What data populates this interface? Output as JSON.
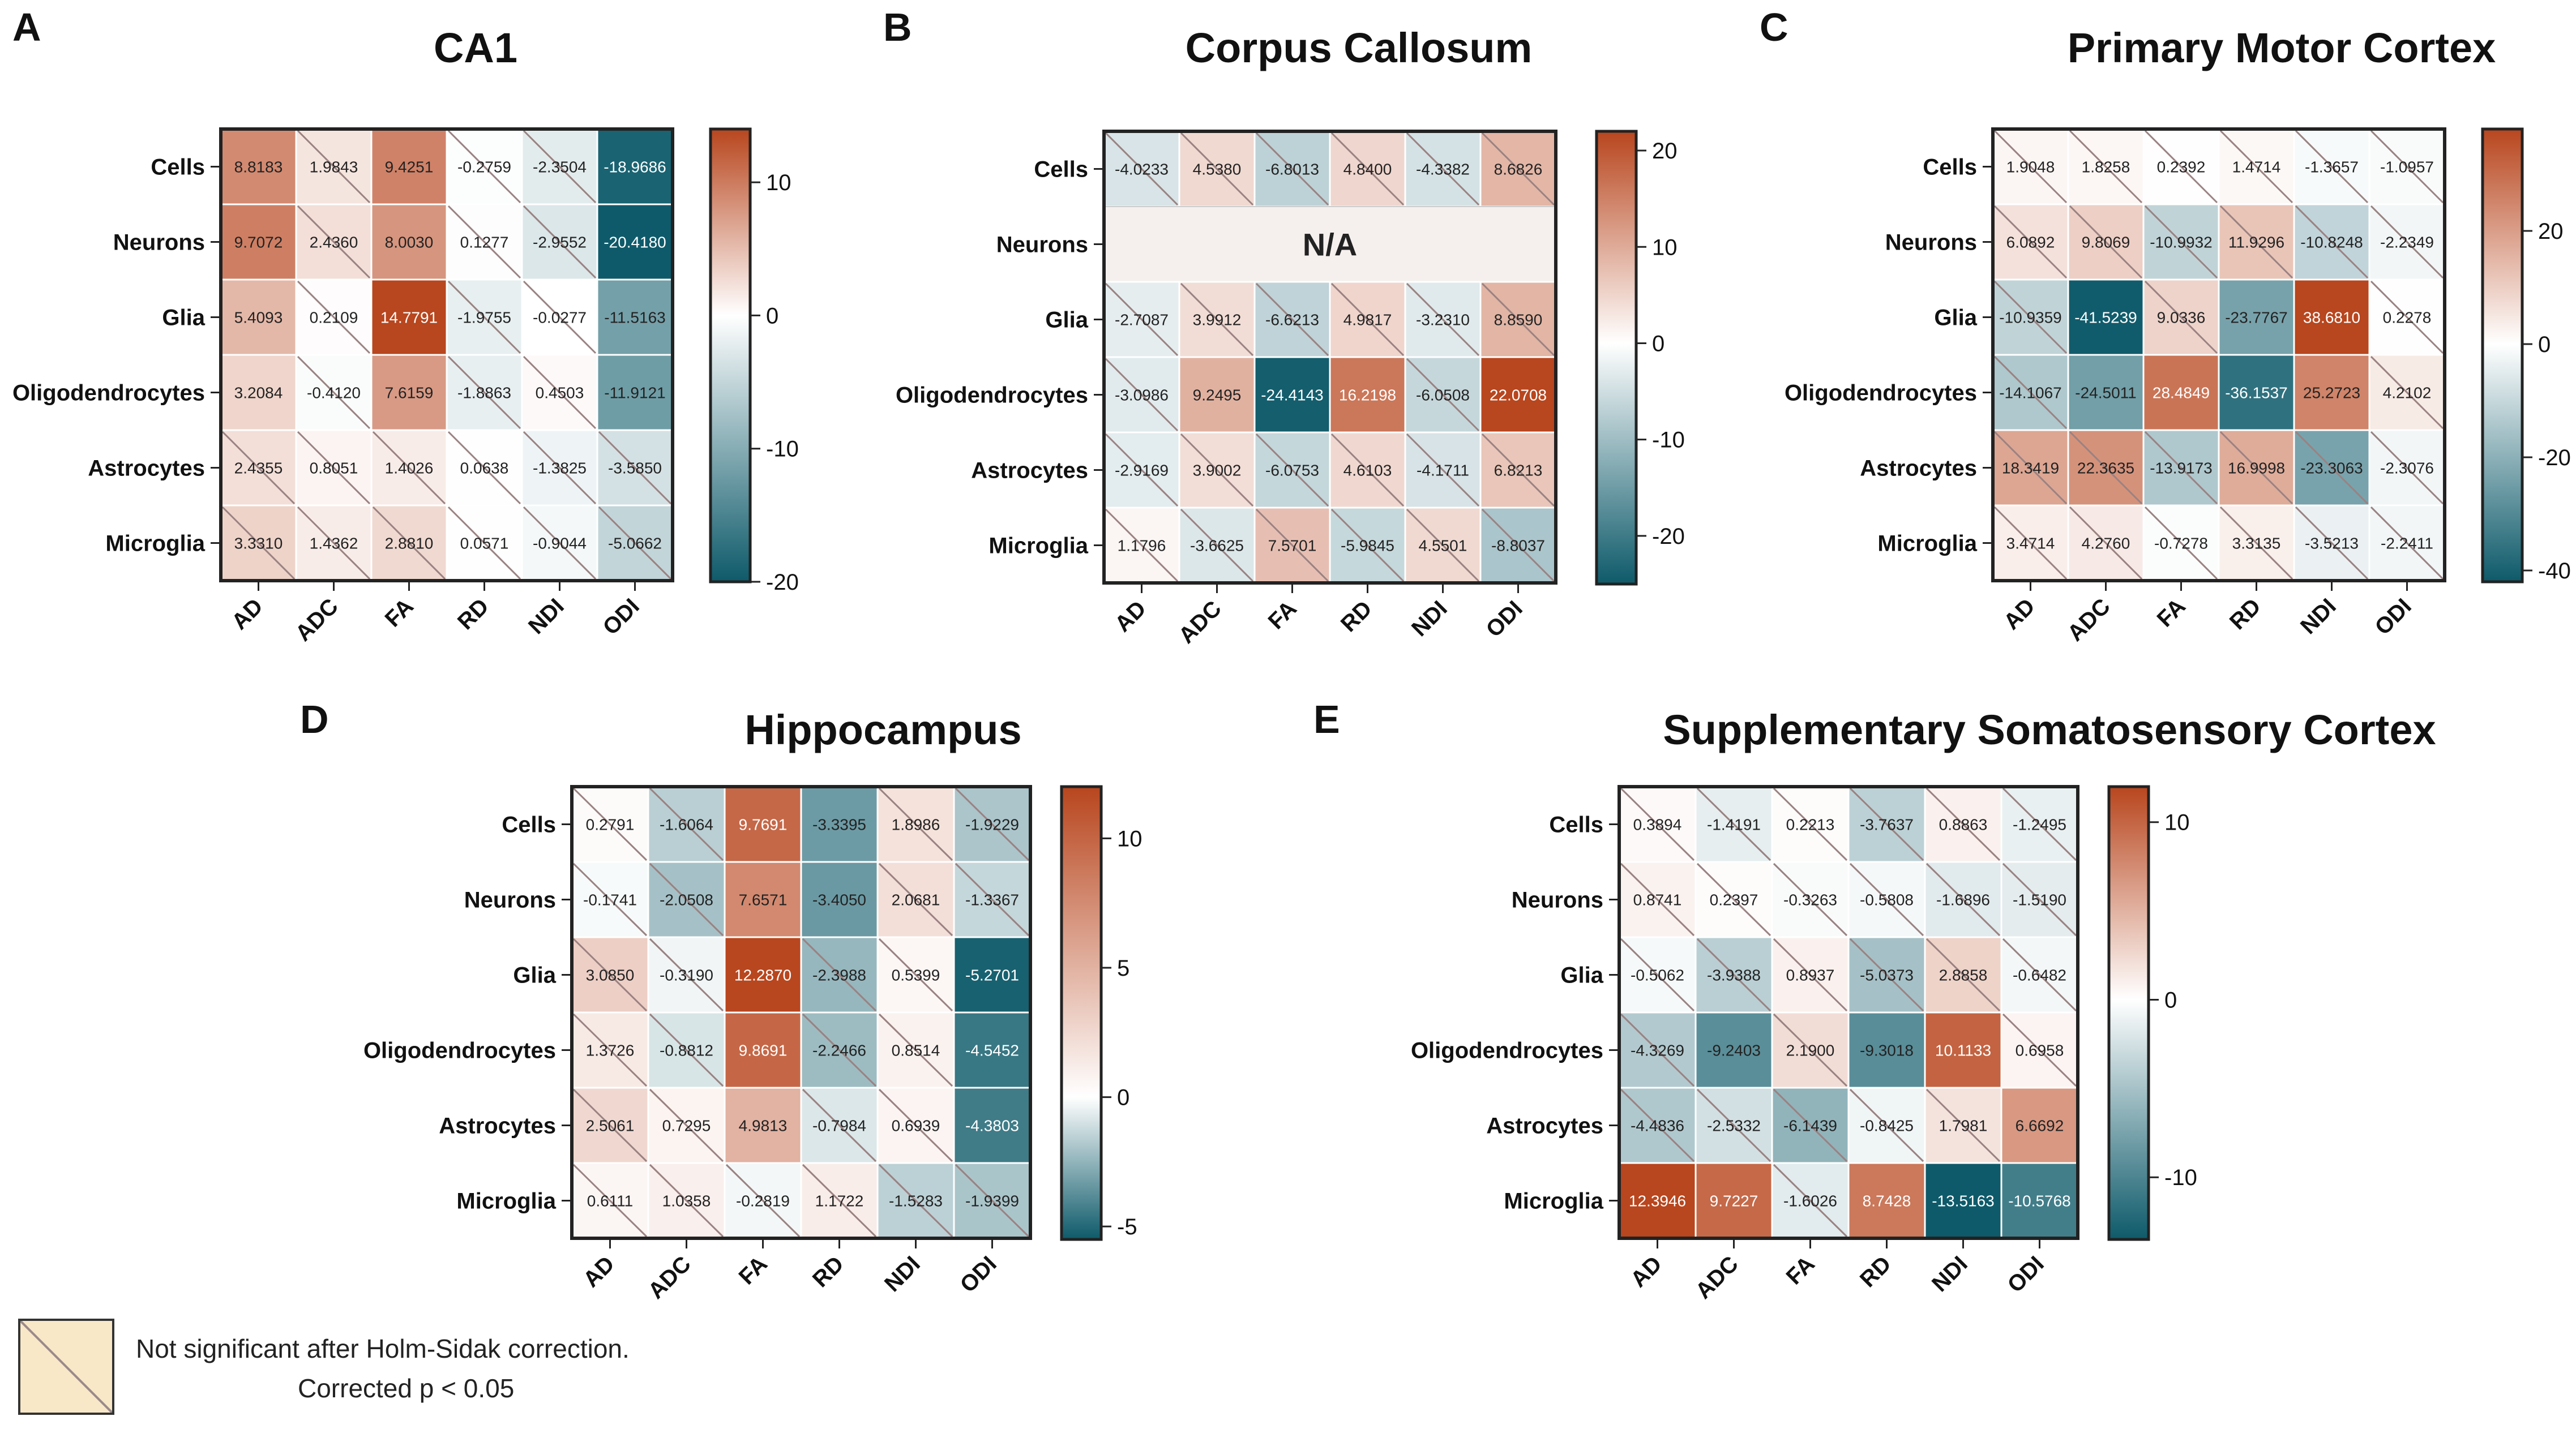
{
  "colors": {
    "positive": "#b8461e",
    "negative": "#0e5a6a",
    "mid": "#ffffff",
    "ns_fill": "#f8e8c8",
    "border": "#222222",
    "na_fill": "#f5f0ee"
  },
  "legend": {
    "line1": "Not significant after Holm-Sidak correction.",
    "line2": "Corrected p < 0.05"
  },
  "chart_data": [
    {
      "type": "heatmap",
      "panel": "A",
      "title": "CA1",
      "rows": [
        "Cells",
        "Neurons",
        "Glia",
        "Oligodendrocytes",
        "Astrocytes",
        "Microglia"
      ],
      "columns": [
        "AD",
        "ADC",
        "FA",
        "RD",
        "NDI",
        "ODI"
      ],
      "values": [
        [
          "8.8183",
          "1.9843",
          "9.4251",
          "-0.2759",
          "-2.3504",
          "-18.9686"
        ],
        [
          "9.7072",
          "2.4360",
          "8.0030",
          "0.1277",
          "-2.9552",
          "-20.4180"
        ],
        [
          "5.4093",
          "0.2109",
          "14.7791",
          "-1.9755",
          "-0.0277",
          "-11.5163"
        ],
        [
          "3.2084",
          "-0.4120",
          "7.6159",
          "-1.8863",
          "0.4503",
          "-11.9121"
        ],
        [
          "2.4355",
          "0.8051",
          "1.4026",
          "0.0638",
          "-1.3825",
          "-3.5850"
        ],
        [
          "3.3310",
          "1.4362",
          "2.8810",
          "0.0571",
          "-0.9044",
          "-5.0662"
        ]
      ],
      "ns": [
        [
          0,
          1,
          0,
          1,
          1,
          0
        ],
        [
          0,
          1,
          0,
          1,
          1,
          0
        ],
        [
          0,
          1,
          0,
          1,
          1,
          0
        ],
        [
          0,
          1,
          0,
          1,
          1,
          0
        ],
        [
          1,
          1,
          1,
          1,
          1,
          1
        ],
        [
          1,
          1,
          1,
          1,
          1,
          1
        ]
      ],
      "scale": {
        "min": -20,
        "max": 14,
        "ticks": [
          "10",
          "0",
          "-10",
          "-20"
        ]
      }
    },
    {
      "type": "heatmap",
      "panel": "B",
      "title": "Corpus Callosum",
      "rows": [
        "Cells",
        "Neurons",
        "Glia",
        "Oligodendrocytes",
        "Astrocytes",
        "Microglia"
      ],
      "columns": [
        "AD",
        "ADC",
        "FA",
        "RD",
        "NDI",
        "ODI"
      ],
      "values": [
        [
          "-4.0233",
          "4.5380",
          "-6.8013",
          "4.8400",
          "-4.3382",
          "8.6826"
        ],
        null,
        [
          "-2.7087",
          "3.9912",
          "-6.6213",
          "4.9817",
          "-3.2310",
          "8.8590"
        ],
        [
          "-3.0986",
          "9.2495",
          "-24.4143",
          "16.2198",
          "-6.0508",
          "22.0708"
        ],
        [
          "-2.9169",
          "3.9002",
          "-6.0753",
          "4.6103",
          "-4.1711",
          "6.8213"
        ],
        [
          "1.1796",
          "-3.6625",
          "7.5701",
          "-5.9845",
          "4.5501",
          "-8.8037"
        ]
      ],
      "na_label": "N/A",
      "ns": [
        [
          1,
          1,
          1,
          1,
          1,
          1
        ],
        [
          0,
          0,
          0,
          0,
          0,
          0
        ],
        [
          1,
          1,
          1,
          1,
          1,
          1
        ],
        [
          1,
          0,
          0,
          0,
          1,
          0
        ],
        [
          1,
          1,
          1,
          1,
          1,
          1
        ],
        [
          1,
          1,
          1,
          1,
          1,
          1
        ]
      ],
      "scale": {
        "min": -25,
        "max": 22,
        "ticks": [
          "20",
          "10",
          "0",
          "-10",
          "-20"
        ]
      }
    },
    {
      "type": "heatmap",
      "panel": "C",
      "title": "Primary Motor Cortex",
      "rows": [
        "Cells",
        "Neurons",
        "Glia",
        "Oligodendrocytes",
        "Astrocytes",
        "Microglia"
      ],
      "columns": [
        "AD",
        "ADC",
        "FA",
        "RD",
        "NDI",
        "ODI"
      ],
      "values": [
        [
          "1.9048",
          "1.8258",
          "0.2392",
          "1.4714",
          "-1.3657",
          "-1.0957"
        ],
        [
          "6.0892",
          "9.8069",
          "-10.9932",
          "11.9296",
          "-10.8248",
          "-2.2349"
        ],
        [
          "-10.9359",
          "-41.5239",
          "9.0336",
          "-23.7767",
          "38.6810",
          "0.2278"
        ],
        [
          "-14.1067",
          "-24.5011",
          "28.4849",
          "-36.1537",
          "25.2723",
          "4.2102"
        ],
        [
          "18.3419",
          "22.3635",
          "-13.9173",
          "16.9998",
          "-23.3063",
          "-2.3076"
        ],
        [
          "3.4714",
          "4.2760",
          "-0.7278",
          "3.3135",
          "-3.5213",
          "-2.2411"
        ]
      ],
      "ns": [
        [
          1,
          1,
          1,
          1,
          1,
          1
        ],
        [
          1,
          1,
          1,
          1,
          1,
          1
        ],
        [
          1,
          0,
          1,
          0,
          0,
          1
        ],
        [
          1,
          0,
          0,
          0,
          0,
          1
        ],
        [
          1,
          1,
          1,
          1,
          1,
          1
        ],
        [
          1,
          1,
          1,
          1,
          1,
          1
        ]
      ],
      "scale": {
        "min": -42,
        "max": 38,
        "ticks": [
          "20",
          "0",
          "-20",
          "-40"
        ]
      }
    },
    {
      "type": "heatmap",
      "panel": "D",
      "title": "Hippocampus",
      "rows": [
        "Cells",
        "Neurons",
        "Glia",
        "Oligodendrocytes",
        "Astrocytes",
        "Microglia"
      ],
      "columns": [
        "AD",
        "ADC",
        "FA",
        "RD",
        "NDI",
        "ODI"
      ],
      "values": [
        [
          "0.2791",
          "-1.6064",
          "9.7691",
          "-3.3395",
          "1.8986",
          "-1.9229"
        ],
        [
          "-0.1741",
          "-2.0508",
          "7.6571",
          "-3.4050",
          "2.0681",
          "-1.3367"
        ],
        [
          "3.0850",
          "-0.3190",
          "12.2870",
          "-2.3988",
          "0.5399",
          "-5.2701"
        ],
        [
          "1.3726",
          "-0.8812",
          "9.8691",
          "-2.2466",
          "0.8514",
          "-4.5452"
        ],
        [
          "2.5061",
          "0.7295",
          "4.9813",
          "-0.7984",
          "0.6939",
          "-4.3803"
        ],
        [
          "0.6111",
          "1.0358",
          "-0.2819",
          "1.1722",
          "-1.5283",
          "-1.9399"
        ]
      ],
      "ns": [
        [
          1,
          1,
          0,
          0,
          1,
          1
        ],
        [
          1,
          1,
          0,
          0,
          1,
          1
        ],
        [
          1,
          1,
          0,
          1,
          1,
          0
        ],
        [
          1,
          1,
          0,
          1,
          1,
          0
        ],
        [
          1,
          1,
          0,
          1,
          1,
          0
        ],
        [
          1,
          1,
          1,
          1,
          1,
          1
        ]
      ],
      "scale": {
        "min": -5.5,
        "max": 12,
        "ticks": [
          "10",
          "5",
          "0",
          "-5"
        ]
      }
    },
    {
      "type": "heatmap",
      "panel": "E",
      "title": "Supplementary Somatosensory Cortex",
      "rows": [
        "Cells",
        "Neurons",
        "Glia",
        "Oligodendrocytes",
        "Astrocytes",
        "Microglia"
      ],
      "columns": [
        "AD",
        "ADC",
        "FA",
        "RD",
        "NDI",
        "ODI"
      ],
      "values": [
        [
          "0.3894",
          "-1.4191",
          "0.2213",
          "-3.7637",
          "0.8863",
          "-1.2495"
        ],
        [
          "0.8741",
          "0.2397",
          "-0.3263",
          "-0.5808",
          "-1.6896",
          "-1.5190"
        ],
        [
          "-0.5062",
          "-3.9388",
          "0.8937",
          "-5.0373",
          "2.8858",
          "-0.6482"
        ],
        [
          "-4.3269",
          "-9.2403",
          "2.1900",
          "-9.3018",
          "10.1133",
          "0.6958"
        ],
        [
          "-4.4836",
          "-2.5332",
          "-6.1439",
          "-0.8425",
          "1.7981",
          "6.6692"
        ],
        [
          "12.3946",
          "9.7227",
          "-1.6026",
          "8.7428",
          "-13.5163",
          "-10.5768"
        ]
      ],
      "ns": [
        [
          1,
          1,
          1,
          1,
          1,
          1
        ],
        [
          1,
          1,
          1,
          1,
          1,
          1
        ],
        [
          1,
          1,
          1,
          1,
          1,
          1
        ],
        [
          1,
          0,
          1,
          0,
          0,
          1
        ],
        [
          1,
          1,
          1,
          1,
          1,
          0
        ],
        [
          0,
          0,
          1,
          0,
          0,
          0
        ]
      ],
      "scale": {
        "min": -13.5,
        "max": 12,
        "ticks": [
          "10",
          "0",
          "-10"
        ]
      }
    }
  ]
}
